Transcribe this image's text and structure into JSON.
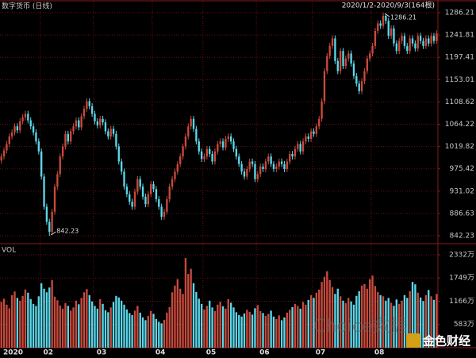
{
  "chart_data": {
    "type": "candlestick",
    "title": "数字货币 (日线)",
    "range_label": "2020/1/2-2020/9/3(164根)",
    "volume_label": "VOL",
    "watermark": "Choice数据",
    "logo": "金色财经",
    "up_color": "#c84a3c",
    "down_color": "#5ad8ea",
    "grid": true,
    "categories": [
      "2020",
      null,
      null,
      null,
      null,
      null,
      null,
      null,
      null,
      null,
      null,
      null,
      null,
      null,
      null,
      "02",
      null,
      null,
      null,
      null,
      null,
      null,
      null,
      null,
      null,
      null,
      null,
      null,
      null,
      null,
      null,
      null,
      null,
      null,
      null,
      "03",
      null,
      null,
      null,
      null,
      null,
      null,
      null,
      null,
      null,
      null,
      null,
      null,
      null,
      null,
      null,
      null,
      null,
      null,
      null,
      null,
      null,
      "04",
      null,
      null,
      null,
      null,
      null,
      null,
      null,
      null,
      null,
      null,
      null,
      null,
      null,
      null,
      null,
      null,
      null,
      null,
      "05",
      null,
      null,
      null,
      null,
      null,
      null,
      null,
      null,
      null,
      null,
      null,
      null,
      null,
      null,
      null,
      null,
      null,
      null,
      null,
      "06",
      null,
      null,
      null,
      null,
      null,
      null,
      null,
      null,
      null,
      null,
      null,
      null,
      null,
      null,
      null,
      null,
      null,
      null,
      null,
      null,
      "07",
      null,
      null,
      null,
      null,
      null,
      null,
      null,
      null,
      null,
      null,
      null,
      null,
      null,
      null,
      null,
      null,
      null,
      null,
      null,
      null,
      null,
      "08",
      null,
      null,
      null,
      null,
      null,
      null,
      null,
      null,
      null,
      null,
      null,
      null,
      null,
      null,
      null,
      null,
      null,
      null,
      null,
      null,
      null,
      null,
      null,
      null
    ],
    "open": [
      992,
      1000,
      1012,
      1025,
      1040,
      1048,
      1060,
      1052,
      1070,
      1078,
      1085,
      1072,
      1060,
      1048,
      1030,
      1010,
      960,
      900,
      870,
      850,
      890,
      940,
      965,
      1000,
      1020,
      1045,
      1030,
      1050,
      1060,
      1072,
      1058,
      1080,
      1095,
      1110,
      1100,
      1085,
      1070,
      1062,
      1075,
      1068,
      1050,
      1040,
      1055,
      1045,
      1020,
      990,
      970,
      940,
      925,
      910,
      900,
      930,
      955,
      940,
      920,
      905,
      925,
      945,
      935,
      915,
      900,
      880,
      890,
      915,
      940,
      955,
      970,
      985,
      1000,
      1020,
      1040,
      1060,
      1075,
      1055,
      1030,
      1010,
      995,
      1000,
      1015,
      1005,
      990,
      1010,
      1025,
      1030,
      1018,
      1035,
      1040,
      1030,
      1015,
      1000,
      985,
      970,
      960,
      975,
      990,
      985,
      955,
      965,
      980,
      975,
      990,
      1000,
      985,
      975,
      980,
      990,
      985,
      975,
      990,
      1005,
      1000,
      1015,
      1025,
      1010,
      1030,
      1040,
      1035,
      1050,
      1045,
      1060,
      1075,
      1110,
      1170,
      1200,
      1220,
      1235,
      1190,
      1170,
      1210,
      1180,
      1195,
      1205,
      1185,
      1160,
      1145,
      1130,
      1150,
      1170,
      1195,
      1205,
      1220,
      1250,
      1265,
      1260,
      1280,
      1270,
      1240,
      1255,
      1225,
      1210,
      1230,
      1240,
      1220,
      1210,
      1235,
      1225,
      1215,
      1240,
      1230,
      1220,
      1235,
      1225,
      1240,
      1230
    ],
    "high": [
      1006,
      1018,
      1031,
      1046,
      1054,
      1066,
      1066,
      1076,
      1084,
      1091,
      1091,
      1078,
      1066,
      1054,
      1036,
      1016,
      966,
      906,
      876,
      896,
      946,
      971,
      1006,
      1026,
      1051,
      1051,
      1056,
      1066,
      1078,
      1078,
      1086,
      1101,
      1116,
      1116,
      1106,
      1091,
      1076,
      1081,
      1081,
      1074,
      1056,
      1061,
      1061,
      1051,
      1026,
      996,
      976,
      946,
      931,
      916,
      936,
      961,
      961,
      946,
      926,
      931,
      951,
      951,
      941,
      921,
      906,
      896,
      921,
      946,
      961,
      976,
      991,
      1006,
      1026,
      1046,
      1066,
      1081,
      1081,
      1061,
      1036,
      1016,
      1006,
      1021,
      1021,
      1011,
      1016,
      1031,
      1036,
      1036,
      1041,
      1046,
      1046,
      1036,
      1021,
      1006,
      991,
      976,
      981,
      996,
      996,
      991,
      971,
      986,
      986,
      996,
      1006,
      1006,
      991,
      986,
      996,
      996,
      991,
      996,
      1011,
      1011,
      1021,
      1031,
      1031,
      1036,
      1046,
      1046,
      1056,
      1056,
      1066,
      1081,
      1116,
      1176,
      1206,
      1226,
      1241,
      1241,
      1196,
      1216,
      1216,
      1201,
      1211,
      1211,
      1191,
      1166,
      1151,
      1156,
      1176,
      1201,
      1211,
      1226,
      1256,
      1271,
      1271,
      1286.21,
      1284,
      1276,
      1261,
      1261,
      1231,
      1236,
      1246,
      1246,
      1226,
      1241,
      1241,
      1231,
      1246,
      1246,
      1236,
      1241,
      1241,
      1246,
      1246,
      1251
    ],
    "low": [
      986,
      994,
      1006,
      1019,
      1034,
      1042,
      1046,
      1046,
      1064,
      1072,
      1066,
      1054,
      1042,
      1024,
      1004,
      954,
      894,
      864,
      842.23,
      844,
      884,
      934,
      959,
      994,
      1014,
      1024,
      1024,
      1044,
      1054,
      1052,
      1052,
      1074,
      1089,
      1094,
      1079,
      1064,
      1056,
      1056,
      1062,
      1044,
      1034,
      1034,
      1039,
      1014,
      984,
      964,
      934,
      919,
      904,
      894,
      894,
      924,
      934,
      914,
      899,
      899,
      919,
      929,
      909,
      894,
      874,
      874,
      884,
      909,
      934,
      949,
      964,
      979,
      994,
      1014,
      1034,
      1054,
      1049,
      1024,
      1004,
      989,
      989,
      994,
      999,
      984,
      984,
      1004,
      1019,
      1012,
      1012,
      1029,
      1024,
      1009,
      994,
      979,
      964,
      954,
      954,
      969,
      979,
      949,
      949,
      959,
      969,
      969,
      984,
      979,
      969,
      969,
      974,
      979,
      969,
      969,
      984,
      994,
      994,
      1009,
      1004,
      1004,
      1024,
      1029,
      1029,
      1039,
      1039,
      1054,
      1069,
      1104,
      1164,
      1194,
      1214,
      1184,
      1164,
      1164,
      1174,
      1174,
      1189,
      1179,
      1154,
      1139,
      1124,
      1124,
      1144,
      1164,
      1189,
      1199,
      1214,
      1244,
      1254,
      1254,
      1264,
      1234,
      1234,
      1219,
      1204,
      1204,
      1224,
      1214,
      1204,
      1204,
      1219,
      1209,
      1209,
      1224,
      1214,
      1214,
      1219,
      1219,
      1224,
      1224
    ],
    "close": [
      1000,
      1012,
      1025,
      1040,
      1048,
      1060,
      1052,
      1070,
      1078,
      1085,
      1072,
      1060,
      1048,
      1030,
      1010,
      960,
      900,
      870,
      850,
      890,
      940,
      965,
      1000,
      1020,
      1045,
      1030,
      1050,
      1060,
      1072,
      1058,
      1080,
      1095,
      1110,
      1100,
      1085,
      1070,
      1062,
      1075,
      1068,
      1050,
      1040,
      1055,
      1045,
      1020,
      990,
      970,
      940,
      925,
      910,
      900,
      930,
      955,
      940,
      920,
      905,
      925,
      945,
      935,
      915,
      900,
      880,
      890,
      915,
      940,
      955,
      970,
      985,
      1000,
      1020,
      1040,
      1060,
      1075,
      1055,
      1030,
      1010,
      995,
      1000,
      1015,
      1005,
      990,
      1010,
      1025,
      1030,
      1018,
      1035,
      1040,
      1030,
      1015,
      1000,
      985,
      970,
      960,
      975,
      990,
      985,
      955,
      965,
      980,
      975,
      990,
      1000,
      985,
      975,
      980,
      990,
      985,
      975,
      990,
      1005,
      1000,
      1015,
      1025,
      1010,
      1030,
      1040,
      1035,
      1050,
      1045,
      1060,
      1075,
      1110,
      1170,
      1200,
      1220,
      1235,
      1190,
      1170,
      1210,
      1180,
      1195,
      1205,
      1185,
      1160,
      1145,
      1130,
      1150,
      1170,
      1195,
      1205,
      1220,
      1250,
      1265,
      1260,
      1280,
      1270,
      1240,
      1255,
      1225,
      1210,
      1230,
      1240,
      1220,
      1210,
      1235,
      1225,
      1215,
      1240,
      1230,
      1220,
      1235,
      1225,
      1240,
      1230,
      1245
    ],
    "volume": [
      1150,
      1230,
      1080,
      990,
      1320,
      1410,
      1250,
      1180,
      1300,
      1460,
      1380,
      1220,
      1100,
      1050,
      1290,
      1620,
      1480,
      1390,
      1510,
      1700,
      1280,
      1190,
      1060,
      980,
      1120,
      1050,
      930,
      1010,
      1180,
      1090,
      1250,
      1390,
      1470,
      1320,
      1160,
      1050,
      980,
      1220,
      1100,
      940,
      890,
      1010,
      1150,
      1300,
      1260,
      1180,
      1080,
      960,
      870,
      820,
      930,
      1050,
      880,
      760,
      690,
      800,
      920,
      850,
      720,
      650,
      610,
      700,
      880,
      1020,
      1390,
      1560,
      1720,
      1480,
      1350,
      2250,
      1850,
      1980,
      1620,
      1400,
      1230,
      1100,
      960,
      1050,
      1180,
      1010,
      920,
      1080,
      1150,
      1040,
      980,
      1220,
      1130,
      1010,
      890,
      820,
      780,
      860,
      950,
      900,
      830,
      990,
      1070,
      920,
      870,
      800,
      850,
      930,
      780,
      720,
      810,
      690,
      760,
      880,
      950,
      1020,
      1100,
      1050,
      980,
      1150,
      1080,
      1200,
      1320,
      1250,
      1380,
      1460,
      1650,
      1780,
      1920,
      1700,
      1520,
      1350,
      1480,
      1290,
      1180,
      1120,
      1250,
      1160,
      1080,
      1300,
      1420,
      1560,
      1600,
      1480,
      1720,
      1810,
      1550,
      1400,
      1320,
      1290,
      1180,
      1250,
      1130,
      1050,
      1210,
      1100,
      1180,
      1320,
      1250,
      1420,
      1650,
      1590,
      1380,
      1260,
      1170,
      1320,
      1450,
      1290,
      1200,
      1350
    ],
    "ylim": [
      829.6,
      1298.85
    ],
    "yticks": [
      842.23,
      886.63,
      931.02,
      975.42,
      1019.82,
      1064.22,
      1108.62,
      1153.01,
      1197.41,
      1241.81,
      1286.21
    ],
    "vlim": [
      0,
      2511
    ],
    "vticks": [
      {
        "value": 583,
        "label": "583万"
      },
      {
        "value": 1166,
        "label": "1166万"
      },
      {
        "value": 1749,
        "label": "1749万"
      },
      {
        "value": 2332,
        "label": "2332万"
      }
    ]
  }
}
